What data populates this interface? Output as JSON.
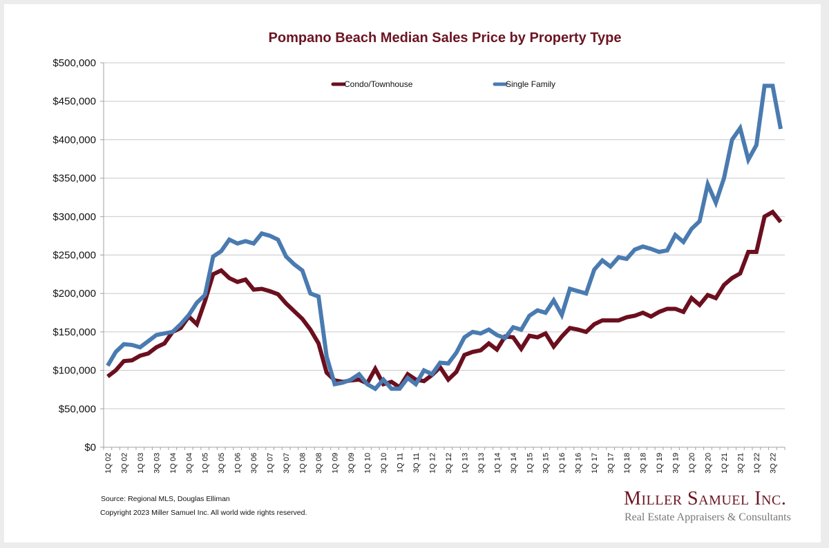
{
  "chart_data": {
    "type": "line",
    "title": "Pompano Beach Median Sales Price by Property Type",
    "xlabel": "",
    "ylabel": "",
    "ylim": [
      0,
      500000
    ],
    "y_ticks": [
      "$0",
      "$50,000",
      "$100,000",
      "$150,000",
      "$200,000",
      "$250,000",
      "$300,000",
      "$350,000",
      "$400,000",
      "$450,000",
      "$500,000"
    ],
    "grid": true,
    "legend_position": "top",
    "x_tick_labels": [
      "1Q 02",
      "3Q 02",
      "1Q 03",
      "3Q 03",
      "1Q 04",
      "3Q 04",
      "1Q 05",
      "3Q 05",
      "1Q 06",
      "3Q 06",
      "1Q 07",
      "3Q 07",
      "1Q 08",
      "3Q 08",
      "1Q 09",
      "3Q 09",
      "1Q 10",
      "3Q 10",
      "1Q 11",
      "3Q 11",
      "1Q 12",
      "3Q 12",
      "1Q 13",
      "3Q 13",
      "1Q 14",
      "3Q 14",
      "1Q 15",
      "3Q 15",
      "1Q 16",
      "3Q 16",
      "1Q 17",
      "3Q 17",
      "1Q 18",
      "3Q 18",
      "1Q 19",
      "3Q 19",
      "1Q 20",
      "3Q 20",
      "1Q 21",
      "3Q 21",
      "1Q 22",
      "3Q 22"
    ],
    "series": [
      {
        "name": "Condo/Townhouse",
        "color": "#6b0f1f",
        "values": [
          92000,
          100000,
          112000,
          113000,
          119000,
          122000,
          130000,
          135000,
          150000,
          155000,
          170000,
          160000,
          190000,
          225000,
          230000,
          220000,
          215000,
          218000,
          205000,
          206000,
          203000,
          199000,
          187000,
          177000,
          167000,
          153000,
          135000,
          97000,
          87000,
          85000,
          87000,
          88000,
          83000,
          102000,
          82000,
          85000,
          78000,
          95000,
          88000,
          86000,
          94000,
          104000,
          88000,
          98000,
          120000,
          124000,
          126000,
          135000,
          127000,
          144000,
          143000,
          128000,
          145000,
          143000,
          148000,
          131000,
          144000,
          155000,
          153000,
          150000,
          160000,
          165000,
          165000,
          165000,
          169000,
          171000,
          175000,
          170000,
          176000,
          180000,
          180000,
          176000,
          194000,
          185000,
          198000,
          194000,
          211000,
          220000,
          226000,
          254000,
          254000,
          300000,
          306000,
          293000
        ]
      },
      {
        "name": "Single Family",
        "color": "#4a7bb0",
        "values": [
          106000,
          124000,
          134000,
          133000,
          130000,
          138000,
          146000,
          148000,
          150000,
          160000,
          172000,
          188000,
          198000,
          248000,
          255000,
          270000,
          265000,
          268000,
          265000,
          278000,
          275000,
          270000,
          248000,
          238000,
          230000,
          200000,
          196000,
          118000,
          82000,
          84000,
          88000,
          95000,
          82000,
          76000,
          88000,
          76000,
          76000,
          90000,
          82000,
          100000,
          95000,
          110000,
          109000,
          123000,
          143000,
          150000,
          148000,
          153000,
          146000,
          142000,
          156000,
          153000,
          171000,
          178000,
          175000,
          191000,
          172000,
          206000,
          203000,
          200000,
          231000,
          243000,
          235000,
          247000,
          245000,
          257000,
          261000,
          258000,
          254000,
          256000,
          276000,
          267000,
          284000,
          294000,
          342000,
          318000,
          350000,
          400000,
          415000,
          374000,
          393000,
          470000,
          470000,
          414000
        ]
      }
    ]
  },
  "footer": {
    "source": "Source: Regional MLS, Douglas Elliman",
    "copyright": "Copyright 2023 Miller Samuel Inc.  All world wide rights reserved."
  },
  "logo": {
    "name": "Miller Samuel Inc.",
    "tagline": "Real Estate Appraisers & Consultants"
  }
}
